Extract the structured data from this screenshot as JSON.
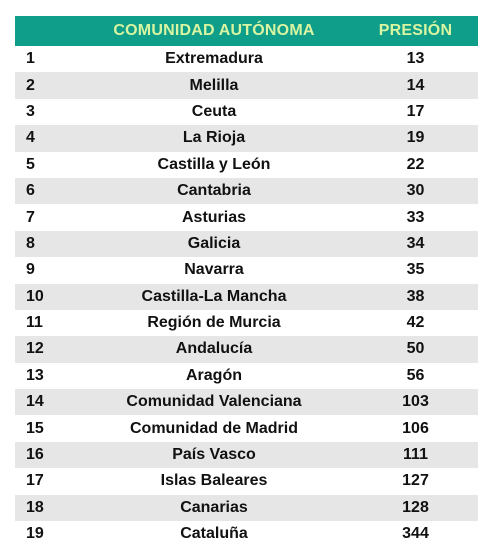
{
  "header": {
    "rank_label": "",
    "name_label": "COMUNIDAD AUTÓNOMA",
    "value_label": "PRESIÓN"
  },
  "rows": [
    {
      "rank": "1",
      "name": "Extremadura",
      "value": "13"
    },
    {
      "rank": "2",
      "name": "Melilla",
      "value": "14"
    },
    {
      "rank": "3",
      "name": "Ceuta",
      "value": "17"
    },
    {
      "rank": "4",
      "name": "La Rioja",
      "value": "19"
    },
    {
      "rank": "5",
      "name": "Castilla y León",
      "value": "22"
    },
    {
      "rank": "6",
      "name": "Cantabria",
      "value": "30"
    },
    {
      "rank": "7",
      "name": "Asturias",
      "value": "33"
    },
    {
      "rank": "8",
      "name": "Galicia",
      "value": "34"
    },
    {
      "rank": "9",
      "name": "Navarra",
      "value": "35"
    },
    {
      "rank": "10",
      "name": "Castilla-La Mancha",
      "value": "38"
    },
    {
      "rank": "11",
      "name": "Región de Murcia",
      "value": "42"
    },
    {
      "rank": "12",
      "name": "Andalucía",
      "value": "50"
    },
    {
      "rank": "13",
      "name": "Aragón",
      "value": "56"
    },
    {
      "rank": "14",
      "name": "Comunidad Valenciana",
      "value": "103"
    },
    {
      "rank": "15",
      "name": "Comunidad de Madrid",
      "value": "106"
    },
    {
      "rank": "16",
      "name": "País Vasco",
      "value": "111"
    },
    {
      "rank": "17",
      "name": "Islas Baleares",
      "value": "127"
    },
    {
      "rank": "18",
      "name": "Canarias",
      "value": "128"
    },
    {
      "rank": "19",
      "name": "Cataluña",
      "value": "344"
    }
  ],
  "colors": {
    "header_bg": "#0f9e8a",
    "header_text": "#d8f5a2",
    "alt_row_bg": "#e6e6e6",
    "text": "#111111"
  }
}
